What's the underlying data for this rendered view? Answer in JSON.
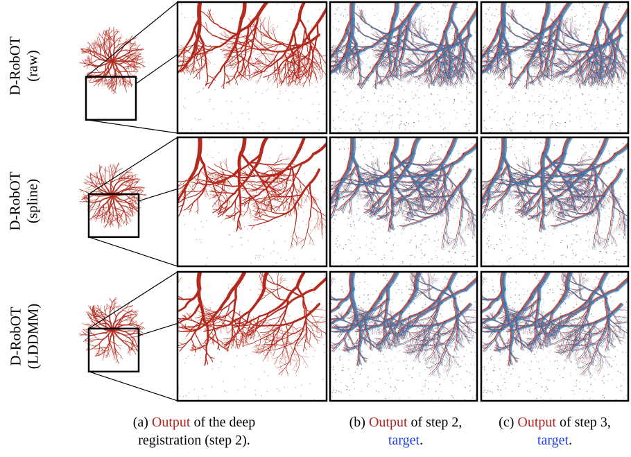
{
  "rows": [
    {
      "label_lines": [
        "D-RobOT",
        "(raw)"
      ]
    },
    {
      "label_lines": [
        "D-RobOT",
        "(spline)"
      ]
    },
    {
      "label_lines": [
        "D-RobOT",
        "(LDDMM)"
      ]
    }
  ],
  "captions": [
    {
      "lines": [
        [
          {
            "text": "(a)"
          },
          {
            "text": "Output",
            "color": "#b22222"
          },
          {
            "text": "of the deep"
          }
        ],
        [
          {
            "text": "registration (step 2)."
          }
        ]
      ]
    },
    {
      "lines": [
        [
          {
            "text": "(b)"
          },
          {
            "text": "Output",
            "color": "#b22222"
          },
          {
            "text": "of step 2,"
          }
        ],
        [
          {
            "text": "target",
            "color": "#1f3fe0"
          },
          {
            "text": "."
          }
        ]
      ]
    },
    {
      "lines": [
        [
          {
            "text": "(c)"
          },
          {
            "text": "Output",
            "color": "#b22222"
          },
          {
            "text": "of step 3,"
          }
        ],
        [
          {
            "text": "target",
            "color": "#1f3fe0"
          },
          {
            "text": "."
          }
        ]
      ]
    }
  ]
}
